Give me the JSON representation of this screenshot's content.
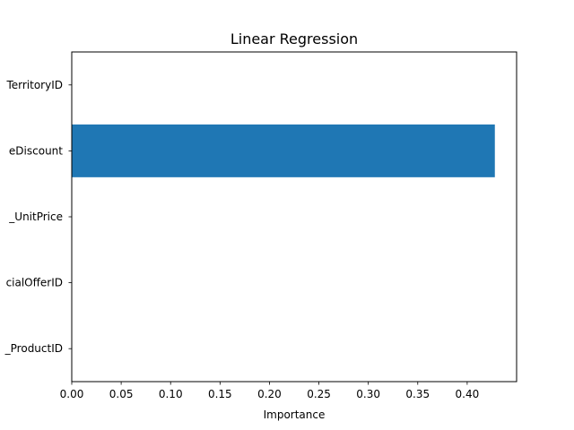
{
  "chart_data": {
    "type": "bar",
    "orientation": "horizontal",
    "title": "Linear Regression",
    "xlabel": "Importance",
    "ylabel": "",
    "categories": [
      "_ProductID",
      "cialOfferID",
      "_UnitPrice",
      "eDiscount",
      "TerritoryID"
    ],
    "values": [
      0.0,
      0.0,
      0.0,
      0.428,
      0.0
    ],
    "xlim": [
      0,
      0.45
    ],
    "xticks": [
      "0.00",
      "0.05",
      "0.10",
      "0.15",
      "0.20",
      "0.25",
      "0.30",
      "0.35",
      "0.40"
    ],
    "bar_color": "#1f77b4",
    "grid": false,
    "legend": "none"
  }
}
